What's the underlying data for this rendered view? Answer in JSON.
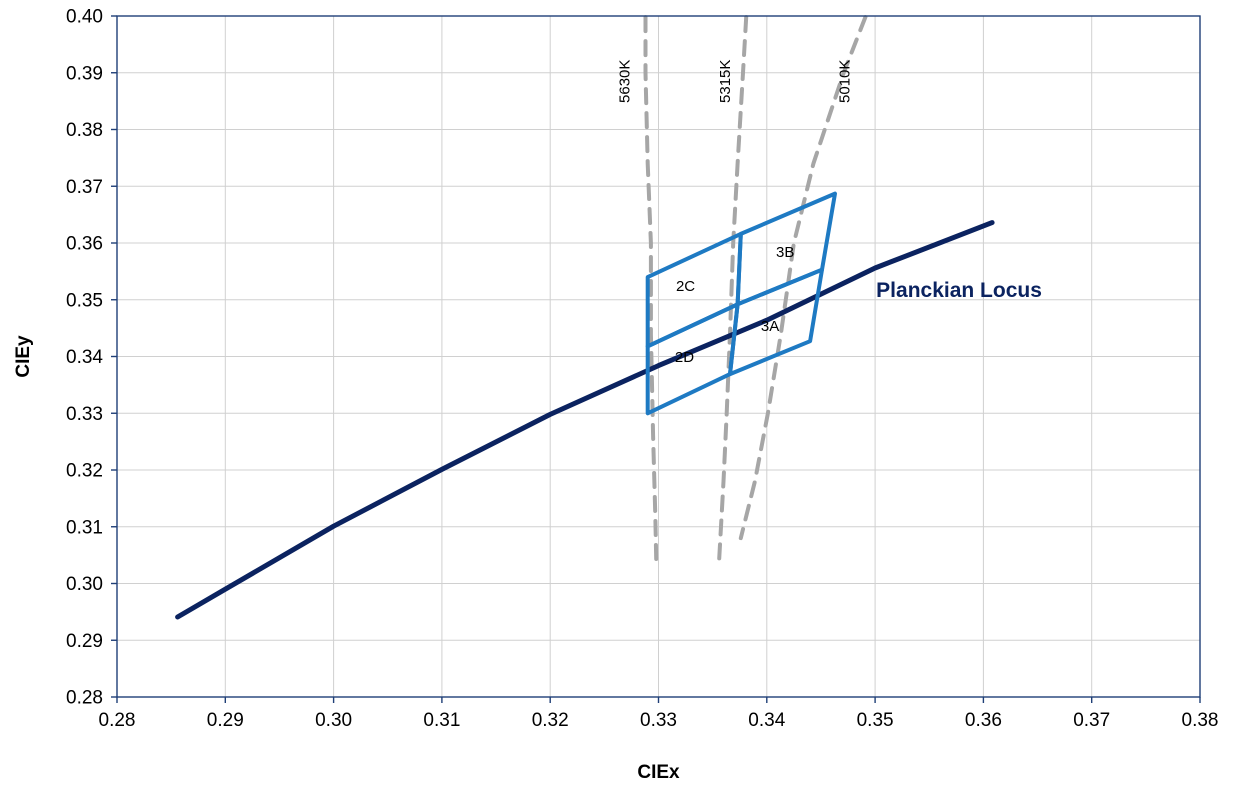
{
  "chart_data": {
    "type": "line",
    "xlabel": "CIEx",
    "ylabel": "CIEy",
    "xlim": [
      0.28,
      0.38
    ],
    "ylim": [
      0.28,
      0.4
    ],
    "xticks": [
      "0.28",
      "0.29",
      "0.30",
      "0.31",
      "0.32",
      "0.33",
      "0.34",
      "0.35",
      "0.36",
      "0.37",
      "0.38"
    ],
    "yticks": [
      "0.28",
      "0.29",
      "0.30",
      "0.31",
      "0.32",
      "0.33",
      "0.34",
      "0.35",
      "0.36",
      "0.37",
      "0.38",
      "0.39",
      "0.40"
    ],
    "grid": true,
    "colors": {
      "locus": "#0b2360",
      "bins": "#1e7ac3",
      "cct": "#a6a6a6",
      "axis": "#1f3f77"
    },
    "series": [
      {
        "name": "Planckian Locus",
        "kind": "curve",
        "points": [
          [
            0.2856,
            0.2941
          ],
          [
            0.29,
            0.299
          ],
          [
            0.3,
            0.3101
          ],
          [
            0.31,
            0.3201
          ],
          [
            0.32,
            0.3298
          ],
          [
            0.33,
            0.3384
          ],
          [
            0.34,
            0.3464
          ],
          [
            0.35,
            0.3556
          ],
          [
            0.3608,
            0.3636
          ]
        ]
      }
    ],
    "cct_lines": [
      {
        "label": "5630K",
        "points": [
          [
            0.3288,
            0.3998
          ],
          [
            0.3288,
            0.39
          ],
          [
            0.329,
            0.374
          ],
          [
            0.3293,
            0.36
          ],
          [
            0.3293,
            0.344
          ],
          [
            0.3295,
            0.326
          ],
          [
            0.3297,
            0.312
          ],
          [
            0.3298,
            0.3035
          ]
        ]
      },
      {
        "label": "5315K",
        "points": [
          [
            0.3381,
            0.3998
          ],
          [
            0.3378,
            0.39
          ],
          [
            0.3373,
            0.374
          ],
          [
            0.3369,
            0.36
          ],
          [
            0.3366,
            0.344
          ],
          [
            0.3363,
            0.33
          ],
          [
            0.336,
            0.318
          ],
          [
            0.3356,
            0.304
          ]
        ]
      },
      {
        "label": "5010K",
        "points": [
          [
            0.3491,
            0.3998
          ],
          [
            0.3471,
            0.39
          ],
          [
            0.3443,
            0.374
          ],
          [
            0.3425,
            0.36
          ],
          [
            0.3413,
            0.344
          ],
          [
            0.3401,
            0.33
          ],
          [
            0.3389,
            0.318
          ],
          [
            0.3376,
            0.308
          ]
        ]
      }
    ],
    "bins": [
      {
        "label": "2C",
        "label_at": [
          0.3325,
          0.3515
        ],
        "points": [
          [
            0.329,
            0.354
          ],
          [
            0.3376,
            0.3616
          ],
          [
            0.3373,
            0.3492
          ],
          [
            0.329,
            0.3418
          ]
        ]
      },
      {
        "label": "3B",
        "label_at": [
          0.3417,
          0.3575
        ],
        "points": [
          [
            0.3376,
            0.3616
          ],
          [
            0.3463,
            0.3687
          ],
          [
            0.3451,
            0.3553
          ],
          [
            0.3373,
            0.3492
          ]
        ]
      },
      {
        "label": "2D",
        "label_at": [
          0.3324,
          0.339
        ],
        "points": [
          [
            0.329,
            0.3418
          ],
          [
            0.3373,
            0.3492
          ],
          [
            0.3366,
            0.3369
          ],
          [
            0.329,
            0.33
          ]
        ]
      },
      {
        "label": "3A",
        "label_at": [
          0.3403,
          0.3445
        ],
        "points": [
          [
            0.3373,
            0.3492
          ],
          [
            0.3451,
            0.3553
          ],
          [
            0.344,
            0.3427
          ],
          [
            0.3366,
            0.3369
          ]
        ]
      }
    ]
  }
}
